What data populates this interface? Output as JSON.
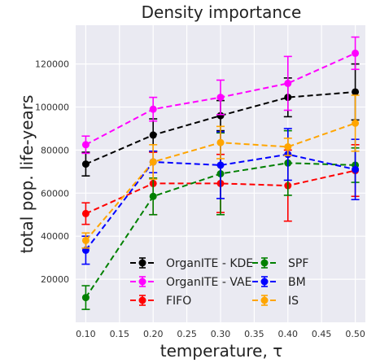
{
  "chart_data": {
    "type": "line",
    "title": "Density importance",
    "xlabel": "temperature, τ",
    "ylabel": "total pop. life-years",
    "x": [
      0.1,
      0.2,
      0.3,
      0.4,
      0.5
    ],
    "xticks": [
      "0.10",
      "0.15",
      "0.20",
      "0.25",
      "0.30",
      "0.35",
      "0.40",
      "0.45",
      "0.50"
    ],
    "xlim": [
      0.085,
      0.515
    ],
    "yticks": [
      "20000",
      "40000",
      "60000",
      "80000",
      "100000",
      "120000"
    ],
    "ylim": [
      0,
      138000
    ],
    "grid": true,
    "legend_position": "bottom-center",
    "legend_columns": 2,
    "series": [
      {
        "name": "OrganITE - KDE",
        "color": "#000000",
        "values": [
          73500,
          87000,
          96000,
          104500,
          107000
        ],
        "errors": [
          5500,
          7500,
          7000,
          9000,
          13000
        ]
      },
      {
        "name": "OrganITE - VAE",
        "color": "#ff00ff",
        "values": [
          82500,
          99000,
          104500,
          111000,
          125000
        ],
        "errors": [
          4000,
          5500,
          8000,
          12500,
          7500
        ]
      },
      {
        "name": "FIFO",
        "color": "#ff0000",
        "values": [
          50500,
          64500,
          64500,
          63500,
          70500
        ],
        "errors": [
          5000,
          14500,
          13500,
          16500,
          12000
        ]
      },
      {
        "name": "SPF",
        "color": "#008000",
        "values": [
          11500,
          58500,
          69000,
          74000,
          73000
        ],
        "errors": [
          5500,
          8500,
          19000,
          15000,
          8000
        ]
      },
      {
        "name": "BM",
        "color": "#0000ff",
        "values": [
          33500,
          74500,
          73000,
          78000,
          71000
        ],
        "errors": [
          6500,
          5000,
          15500,
          12000,
          14000
        ]
      },
      {
        "name": "IS",
        "color": "#ffa500",
        "values": [
          38000,
          74500,
          83500,
          81500,
          92500
        ],
        "errors": [
          3500,
          8000,
          7500,
          4000,
          13000
        ]
      }
    ]
  }
}
